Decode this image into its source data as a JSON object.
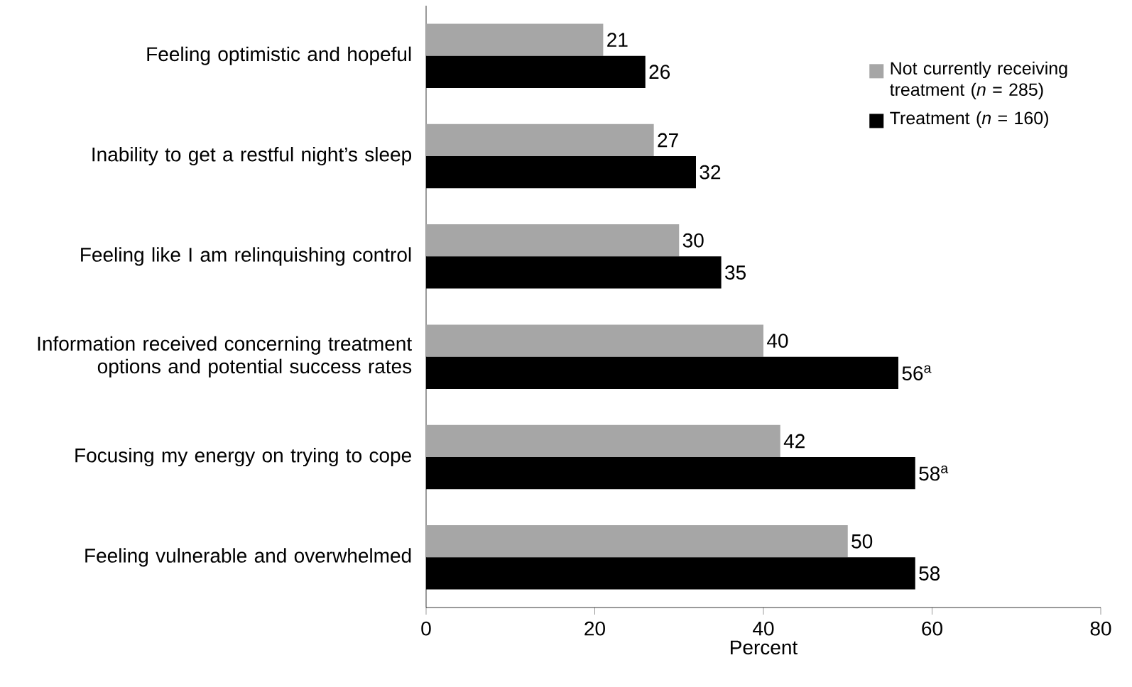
{
  "chart_data": {
    "type": "bar",
    "orientation": "horizontal",
    "xlabel": "Percent",
    "categories": [
      "Feeling optimistic and hopeful",
      "Inability to get a restful night’s sleep",
      "Feeling like I am relinquishing control",
      "Information received concerning treatment options and potential success rates",
      "Focusing my energy on trying to cope",
      "Feeling vulnerable and overwhelmed"
    ],
    "series": [
      {
        "name": "Not currently receiving treatment (*n* = 285)",
        "color": "#a6a6a6",
        "values": [
          21,
          27,
          30,
          40,
          42,
          50
        ],
        "value_labels": [
          "21",
          "27",
          "30",
          "40",
          "42",
          "50"
        ]
      },
      {
        "name": "Treatment (*n* = 160)",
        "color": "#000000",
        "values": [
          26,
          32,
          35,
          56,
          58,
          58
        ],
        "value_labels": [
          "26",
          "32",
          "35",
          "56$^{a}$",
          "58$^{a}$",
          "58"
        ]
      }
    ],
    "xlim": [
      0,
      80
    ],
    "xticks": [
      0,
      20,
      40,
      60,
      80
    ],
    "legend": "top right",
    "grid": false
  }
}
